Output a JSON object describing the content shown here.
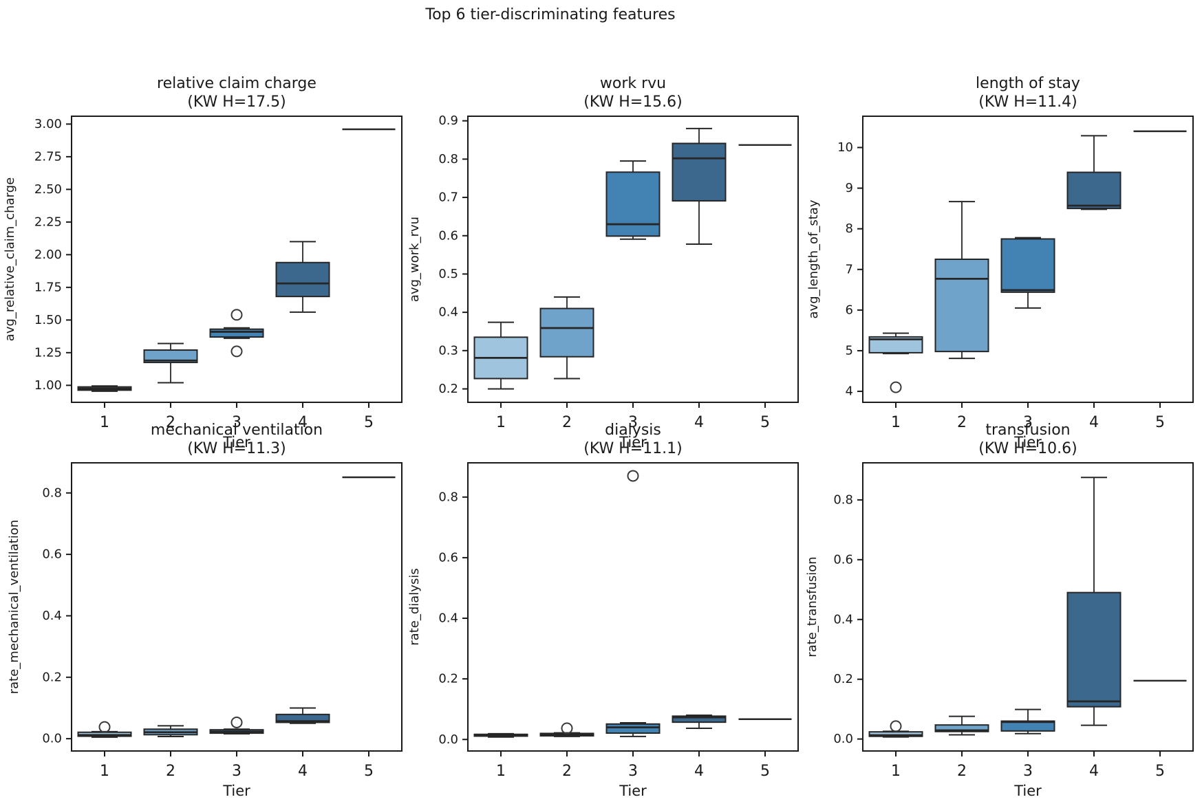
{
  "suptitle": "Top 6 tier-discriminating features",
  "colors": {
    "tier_fill": [
      "#9fc4de",
      "#6fa3c9",
      "#4383b4",
      "#3c688e",
      "#2a4d6e"
    ],
    "box_edge": "#262626",
    "axis": "#1a1a1a",
    "background": "#ffffff"
  },
  "chart_data": [
    {
      "type": "boxplot",
      "title": "relative claim charge",
      "subtitle": "(KW H=17.5)",
      "xlabel": "Tier",
      "ylabel": "avg_relative_claim_charge",
      "categories": [
        "1",
        "2",
        "3",
        "4",
        "5"
      ],
      "ylim": [
        0.87,
        3.06
      ],
      "yticks": [
        1.0,
        1.25,
        1.5,
        1.75,
        2.0,
        2.25,
        2.5,
        2.75,
        3.0
      ],
      "ytick_labels": [
        "1.00",
        "1.25",
        "1.50",
        "1.75",
        "2.00",
        "2.25",
        "2.50",
        "2.75",
        "3.00"
      ],
      "boxes": [
        {
          "tier": "1",
          "whislo": 0.955,
          "q1": 0.963,
          "med": 0.975,
          "q3": 0.988,
          "whishi": 0.995,
          "outliers": []
        },
        {
          "tier": "2",
          "whislo": 1.02,
          "q1": 1.175,
          "med": 1.19,
          "q3": 1.27,
          "whishi": 1.32,
          "outliers": []
        },
        {
          "tier": "3",
          "whislo": 1.36,
          "q1": 1.37,
          "med": 1.41,
          "q3": 1.43,
          "whishi": 1.44,
          "outliers": [
            1.54,
            1.26
          ]
        },
        {
          "tier": "4",
          "whislo": 1.56,
          "q1": 1.68,
          "med": 1.78,
          "q3": 1.94,
          "whishi": 2.1,
          "outliers": []
        },
        {
          "tier": "5",
          "single": 2.96,
          "outliers": []
        }
      ]
    },
    {
      "type": "boxplot",
      "title": "work rvu",
      "subtitle": "(KW H=15.6)",
      "xlabel": "Tier",
      "ylabel": "avg_work_rvu",
      "categories": [
        "1",
        "2",
        "3",
        "4",
        "5"
      ],
      "ylim": [
        0.165,
        0.912
      ],
      "yticks": [
        0.2,
        0.3,
        0.4,
        0.5,
        0.6,
        0.7,
        0.8,
        0.9
      ],
      "ytick_labels": [
        "0.2",
        "0.3",
        "0.4",
        "0.5",
        "0.6",
        "0.7",
        "0.8",
        "0.9"
      ],
      "boxes": [
        {
          "tier": "1",
          "whislo": 0.2,
          "q1": 0.227,
          "med": 0.281,
          "q3": 0.335,
          "whishi": 0.374,
          "outliers": []
        },
        {
          "tier": "2",
          "whislo": 0.227,
          "q1": 0.284,
          "med": 0.359,
          "q3": 0.41,
          "whishi": 0.44,
          "outliers": []
        },
        {
          "tier": "3",
          "whislo": 0.591,
          "q1": 0.599,
          "med": 0.63,
          "q3": 0.766,
          "whishi": 0.795,
          "outliers": []
        },
        {
          "tier": "4",
          "whislo": 0.578,
          "q1": 0.691,
          "med": 0.802,
          "q3": 0.841,
          "whishi": 0.88,
          "outliers": []
        },
        {
          "tier": "5",
          "single": 0.837,
          "outliers": []
        }
      ]
    },
    {
      "type": "boxplot",
      "title": "length of stay",
      "subtitle": "(KW H=11.4)",
      "xlabel": "Tier",
      "ylabel": "avg_length_of_stay",
      "categories": [
        "1",
        "2",
        "3",
        "4",
        "5"
      ],
      "ylim": [
        3.73,
        10.77
      ],
      "yticks": [
        4,
        5,
        6,
        7,
        8,
        9,
        10
      ],
      "ytick_labels": [
        "4",
        "5",
        "6",
        "7",
        "8",
        "9",
        "10"
      ],
      "boxes": [
        {
          "tier": "1",
          "whislo": 4.93,
          "q1": 4.95,
          "med": 5.28,
          "q3": 5.34,
          "whishi": 5.43,
          "outliers": [
            4.1
          ]
        },
        {
          "tier": "2",
          "whislo": 4.81,
          "q1": 4.98,
          "med": 6.77,
          "q3": 7.25,
          "whishi": 8.67,
          "outliers": []
        },
        {
          "tier": "3",
          "whislo": 6.05,
          "q1": 6.44,
          "med": 6.49,
          "q3": 7.75,
          "whishi": 7.78,
          "outliers": []
        },
        {
          "tier": "4",
          "whislo": 8.48,
          "q1": 8.5,
          "med": 8.57,
          "q3": 9.39,
          "whishi": 10.29,
          "outliers": []
        },
        {
          "tier": "5",
          "single": 10.4,
          "outliers": []
        }
      ]
    },
    {
      "type": "boxplot",
      "title": "mechanical ventilation",
      "subtitle": "(KW H=11.3)",
      "xlabel": "Tier",
      "ylabel": "rate_mechanical_ventilation",
      "categories": [
        "1",
        "2",
        "3",
        "4",
        "5"
      ],
      "ylim": [
        -0.04,
        0.898
      ],
      "yticks": [
        0.0,
        0.2,
        0.4,
        0.6,
        0.8
      ],
      "ytick_labels": [
        "0.0",
        "0.2",
        "0.4",
        "0.6",
        "0.8"
      ],
      "boxes": [
        {
          "tier": "1",
          "whislo": 0.005,
          "q1": 0.008,
          "med": 0.012,
          "q3": 0.021,
          "whishi": 0.023,
          "outliers": [
            0.038
          ]
        },
        {
          "tier": "2",
          "whislo": 0.007,
          "q1": 0.013,
          "med": 0.021,
          "q3": 0.031,
          "whishi": 0.042,
          "outliers": []
        },
        {
          "tier": "3",
          "whislo": 0.016,
          "q1": 0.018,
          "med": 0.023,
          "q3": 0.029,
          "whishi": 0.031,
          "outliers": [
            0.053
          ]
        },
        {
          "tier": "4",
          "whislo": 0.05,
          "q1": 0.053,
          "med": 0.057,
          "q3": 0.079,
          "whishi": 0.1,
          "outliers": []
        },
        {
          "tier": "5",
          "single": 0.851,
          "outliers": []
        }
      ]
    },
    {
      "type": "boxplot",
      "title": "dialysis",
      "subtitle": "(KW H=11.1)",
      "xlabel": "Tier",
      "ylabel": "rate_dialysis",
      "categories": [
        "1",
        "2",
        "3",
        "4",
        "5"
      ],
      "ylim": [
        -0.038,
        0.913
      ],
      "yticks": [
        0.0,
        0.2,
        0.4,
        0.6,
        0.8
      ],
      "ytick_labels": [
        "0.0",
        "0.2",
        "0.4",
        "0.6",
        "0.8"
      ],
      "boxes": [
        {
          "tier": "1",
          "whislo": 0.008,
          "q1": 0.011,
          "med": 0.014,
          "q3": 0.017,
          "whishi": 0.019,
          "outliers": []
        },
        {
          "tier": "2",
          "whislo": 0.01,
          "q1": 0.012,
          "med": 0.016,
          "q3": 0.02,
          "whishi": 0.022,
          "outliers": [
            0.037
          ]
        },
        {
          "tier": "3",
          "whislo": 0.01,
          "q1": 0.021,
          "med": 0.04,
          "q3": 0.051,
          "whishi": 0.055,
          "outliers": [
            0.87
          ]
        },
        {
          "tier": "4",
          "whislo": 0.037,
          "q1": 0.057,
          "med": 0.073,
          "q3": 0.077,
          "whishi": 0.08,
          "outliers": []
        },
        {
          "tier": "5",
          "single": 0.067,
          "outliers": []
        }
      ]
    },
    {
      "type": "boxplot",
      "title": "transfusion",
      "subtitle": "(KW H=10.6)",
      "xlabel": "Tier",
      "ylabel": "rate_transfusion",
      "categories": [
        "1",
        "2",
        "3",
        "4",
        "5"
      ],
      "ylim": [
        -0.04,
        0.924
      ],
      "yticks": [
        0.0,
        0.2,
        0.4,
        0.6,
        0.8
      ],
      "ytick_labels": [
        "0.0",
        "0.2",
        "0.4",
        "0.6",
        "0.8"
      ],
      "boxes": [
        {
          "tier": "1",
          "whislo": 0.007,
          "q1": 0.009,
          "med": 0.013,
          "q3": 0.024,
          "whishi": 0.026,
          "outliers": [
            0.043
          ]
        },
        {
          "tier": "2",
          "whislo": 0.014,
          "q1": 0.025,
          "med": 0.029,
          "q3": 0.047,
          "whishi": 0.076,
          "outliers": []
        },
        {
          "tier": "3",
          "whislo": 0.018,
          "q1": 0.027,
          "med": 0.057,
          "q3": 0.06,
          "whishi": 0.099,
          "outliers": []
        },
        {
          "tier": "4",
          "whislo": 0.046,
          "q1": 0.108,
          "med": 0.126,
          "q3": 0.49,
          "whishi": 0.875,
          "outliers": []
        },
        {
          "tier": "5",
          "single": 0.195,
          "outliers": []
        }
      ]
    }
  ]
}
